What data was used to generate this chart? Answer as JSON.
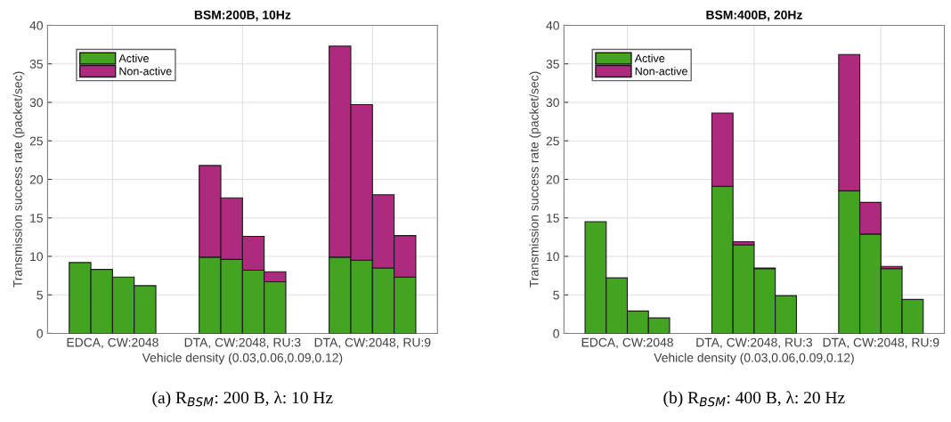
{
  "chart_data": [
    {
      "type": "bar",
      "title": "BSM:200B, 10Hz",
      "xlabel": "Vehicle density (0.03,0.06,0.09,0.12)",
      "ylabel": "Transmission success rate (packet/sec)",
      "categories": [
        null,
        "EDCA, CW:2048",
        null,
        null,
        null,
        null,
        null,
        "DTA, CW:2048, RU:3",
        null,
        null,
        null,
        null,
        null,
        "DTA, CW:2048, RU:9",
        null,
        null
      ],
      "series": [
        {
          "name": "Active",
          "color": "#43a421",
          "values": [
            9.2,
            8.3,
            7.3,
            6.2,
            null,
            null,
            9.9,
            9.6,
            8.2,
            6.7,
            null,
            null,
            9.9,
            9.5,
            8.5,
            7.3
          ]
        },
        {
          "name": "Non-active",
          "color": "#ae2a7e",
          "values": [
            0,
            0,
            0,
            0,
            null,
            null,
            11.9,
            8.0,
            4.4,
            1.3,
            null,
            null,
            27.4,
            20.2,
            9.5,
            5.4
          ]
        }
      ],
      "stacked": true,
      "ylim": [
        0,
        40
      ],
      "yticks": [
        0,
        5,
        10,
        15,
        20,
        25,
        30,
        35,
        40
      ],
      "grid": true,
      "legend": "top left",
      "annotations": [
        "(a) R$_{BSM}$: 200 B, λ: 10 Hz"
      ]
    },
    {
      "type": "bar",
      "title": "BSM:400B, 20Hz",
      "xlabel": "Vehicle density (0.03,0.06,0.09,0.12)",
      "ylabel": "Transmission success rate (packet/sec)",
      "categories": [
        null,
        "EDCA, CW:2048",
        null,
        null,
        null,
        null,
        null,
        "DTA, CW:2048, RU:3",
        null,
        null,
        null,
        null,
        null,
        "DTA, CW:2048, RU:9",
        null,
        null
      ],
      "series": [
        {
          "name": "Active",
          "color": "#43a421",
          "values": [
            14.5,
            7.2,
            2.9,
            2.0,
            null,
            null,
            19.1,
            11.5,
            8.4,
            4.9,
            null,
            null,
            18.5,
            12.9,
            8.4,
            4.4
          ]
        },
        {
          "name": "Non-active",
          "color": "#ae2a7e",
          "values": [
            0,
            0,
            0,
            0,
            null,
            null,
            9.5,
            0.4,
            0.1,
            0,
            null,
            null,
            17.7,
            4.1,
            0.3,
            0
          ]
        }
      ],
      "stacked": true,
      "ylim": [
        0,
        40
      ],
      "yticks": [
        0,
        5,
        10,
        15,
        20,
        25,
        30,
        35,
        40
      ],
      "grid": true,
      "legend": "top left",
      "annotations": [
        "(b) R$_{BSM}$: 400 B, λ: 20 Hz"
      ]
    }
  ]
}
